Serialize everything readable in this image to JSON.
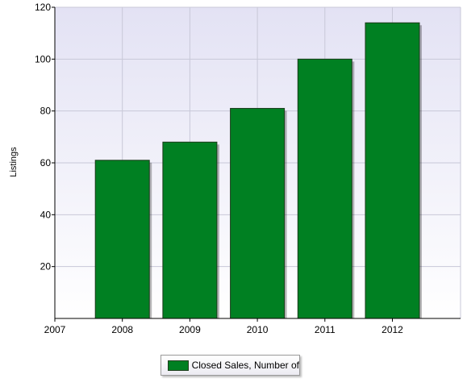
{
  "chart_data": {
    "type": "bar",
    "x_ticks": [
      "2007",
      "2008",
      "2009",
      "2010",
      "2011",
      "2012"
    ],
    "categories": [
      "2008",
      "2009",
      "2010",
      "2011",
      "2012"
    ],
    "series": [
      {
        "name": "Closed Sales, Number of",
        "values": [
          61,
          68,
          81,
          100,
          114
        ]
      }
    ],
    "ylabel": "Listings",
    "xlabel": "",
    "ylim": [
      0,
      120
    ],
    "y_ticks": [
      20,
      40,
      60,
      80,
      100,
      120
    ],
    "grid": true,
    "legend_position": "bottom-center",
    "colors": {
      "bar": "#008022",
      "bar_outline": "#1a3a1a",
      "plot_background_top": "#e3e2f4",
      "plot_background_bottom": "#ffffff",
      "grid": "#c8c8d8"
    }
  }
}
